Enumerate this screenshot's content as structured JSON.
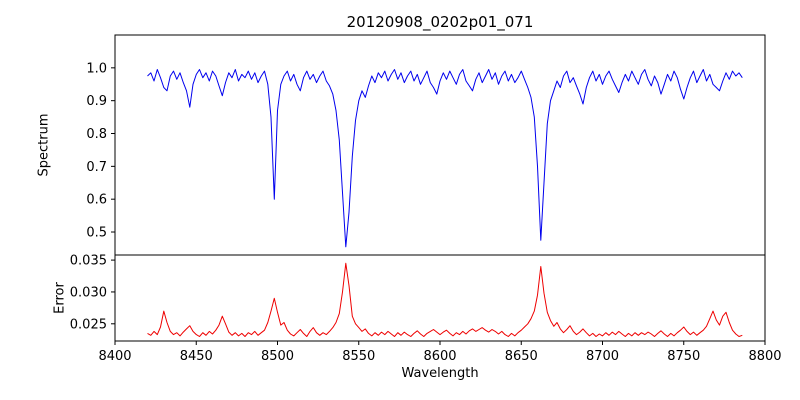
{
  "title": "20120908_0202p01_071",
  "chart_data": [
    {
      "type": "line",
      "name": "spectrum",
      "ylabel": "Spectrum",
      "color": "#0000ee",
      "legend": "none",
      "grid": false,
      "xlim": [
        8400,
        8800
      ],
      "ylim": [
        0.43,
        1.1
      ],
      "yticks": [
        "0.5",
        "0.6",
        "0.7",
        "0.8",
        "0.9",
        "1.0"
      ],
      "x_start": 8420,
      "x_step": 2,
      "values": [
        0.975,
        0.985,
        0.96,
        0.995,
        0.97,
        0.94,
        0.93,
        0.975,
        0.99,
        0.965,
        0.985,
        0.955,
        0.93,
        0.88,
        0.95,
        0.98,
        0.995,
        0.97,
        0.985,
        0.96,
        0.99,
        0.975,
        0.945,
        0.915,
        0.955,
        0.985,
        0.97,
        0.995,
        0.96,
        0.98,
        0.97,
        0.99,
        0.965,
        0.985,
        0.955,
        0.975,
        0.99,
        0.95,
        0.85,
        0.6,
        0.87,
        0.95,
        0.975,
        0.99,
        0.96,
        0.98,
        0.95,
        0.93,
        0.97,
        0.99,
        0.965,
        0.98,
        0.955,
        0.975,
        0.99,
        0.96,
        0.945,
        0.92,
        0.87,
        0.78,
        0.62,
        0.455,
        0.56,
        0.73,
        0.84,
        0.9,
        0.93,
        0.91,
        0.945,
        0.975,
        0.955,
        0.985,
        0.97,
        0.99,
        0.96,
        0.98,
        0.995,
        0.965,
        0.985,
        0.955,
        0.975,
        0.99,
        0.96,
        0.98,
        0.95,
        0.97,
        0.99,
        0.955,
        0.94,
        0.92,
        0.96,
        0.985,
        0.965,
        0.99,
        0.97,
        0.95,
        0.98,
        0.995,
        0.96,
        0.945,
        0.93,
        0.965,
        0.985,
        0.955,
        0.975,
        0.995,
        0.965,
        0.985,
        0.95,
        0.975,
        0.99,
        0.96,
        0.98,
        0.955,
        0.97,
        0.99,
        0.965,
        0.94,
        0.91,
        0.85,
        0.7,
        0.475,
        0.65,
        0.83,
        0.9,
        0.93,
        0.96,
        0.94,
        0.975,
        0.99,
        0.955,
        0.97,
        0.945,
        0.92,
        0.89,
        0.94,
        0.97,
        0.99,
        0.96,
        0.98,
        0.95,
        0.975,
        0.99,
        0.965,
        0.945,
        0.925,
        0.955,
        0.98,
        0.96,
        0.99,
        0.97,
        0.95,
        0.98,
        0.995,
        0.965,
        0.945,
        0.975,
        0.955,
        0.92,
        0.95,
        0.98,
        0.96,
        0.99,
        0.97,
        0.935,
        0.905,
        0.94,
        0.97,
        0.99,
        0.955,
        0.975,
        0.995,
        0.96,
        0.98,
        0.95,
        0.94,
        0.93,
        0.96,
        0.985,
        0.965,
        0.99,
        0.975,
        0.985,
        0.97
      ]
    },
    {
      "type": "line",
      "name": "error",
      "ylabel": "Error",
      "xlabel": "Wavelength",
      "color": "#ee0000",
      "legend": "none",
      "grid": false,
      "xlim": [
        8400,
        8800
      ],
      "ylim": [
        0.0223,
        0.0358
      ],
      "yticks": [
        "0.025",
        "0.030",
        "0.035"
      ],
      "xticks": [
        "8400",
        "8450",
        "8500",
        "8550",
        "8600",
        "8650",
        "8700",
        "8750",
        "8800"
      ],
      "x_start": 8420,
      "x_step": 2,
      "values": [
        0.0235,
        0.0232,
        0.0238,
        0.0233,
        0.0245,
        0.027,
        0.0252,
        0.0238,
        0.0233,
        0.0236,
        0.0231,
        0.0237,
        0.0242,
        0.0247,
        0.0238,
        0.0233,
        0.023,
        0.0236,
        0.0232,
        0.0238,
        0.0234,
        0.024,
        0.0248,
        0.0262,
        0.025,
        0.0237,
        0.0232,
        0.0236,
        0.0231,
        0.0235,
        0.023,
        0.0236,
        0.0233,
        0.0238,
        0.0232,
        0.0236,
        0.024,
        0.0252,
        0.027,
        0.029,
        0.0268,
        0.0248,
        0.0252,
        0.024,
        0.0234,
        0.0231,
        0.0236,
        0.0241,
        0.0235,
        0.023,
        0.0238,
        0.0244,
        0.0236,
        0.0232,
        0.0236,
        0.0233,
        0.0238,
        0.0244,
        0.0252,
        0.0266,
        0.03,
        0.0345,
        0.031,
        0.0262,
        0.025,
        0.0244,
        0.0238,
        0.0242,
        0.0235,
        0.0231,
        0.0236,
        0.0232,
        0.0237,
        0.0233,
        0.0238,
        0.0234,
        0.023,
        0.0236,
        0.0232,
        0.0237,
        0.0233,
        0.023,
        0.0235,
        0.0239,
        0.0234,
        0.023,
        0.0235,
        0.0238,
        0.0241,
        0.0237,
        0.0233,
        0.0237,
        0.024,
        0.0235,
        0.0231,
        0.0236,
        0.0233,
        0.0238,
        0.0234,
        0.0239,
        0.0242,
        0.0238,
        0.0241,
        0.0244,
        0.024,
        0.0237,
        0.0241,
        0.0238,
        0.0234,
        0.0238,
        0.0233,
        0.023,
        0.0235,
        0.0231,
        0.0236,
        0.024,
        0.0245,
        0.025,
        0.0258,
        0.027,
        0.0295,
        0.034,
        0.0298,
        0.0268,
        0.0255,
        0.0246,
        0.0252,
        0.0242,
        0.0236,
        0.0241,
        0.0247,
        0.0238,
        0.0233,
        0.0237,
        0.0242,
        0.0236,
        0.0231,
        0.0235,
        0.023,
        0.0234,
        0.0231,
        0.0236,
        0.0232,
        0.0237,
        0.0233,
        0.0238,
        0.0234,
        0.023,
        0.0235,
        0.0231,
        0.0236,
        0.0232,
        0.0236,
        0.0233,
        0.0237,
        0.0234,
        0.023,
        0.0235,
        0.0239,
        0.0234,
        0.023,
        0.0235,
        0.0231,
        0.0236,
        0.024,
        0.0245,
        0.0238,
        0.0233,
        0.0237,
        0.0232,
        0.0236,
        0.024,
        0.0246,
        0.0258,
        0.027,
        0.0256,
        0.0248,
        0.0262,
        0.0268,
        0.0252,
        0.024,
        0.0234,
        0.023,
        0.0232
      ]
    }
  ]
}
